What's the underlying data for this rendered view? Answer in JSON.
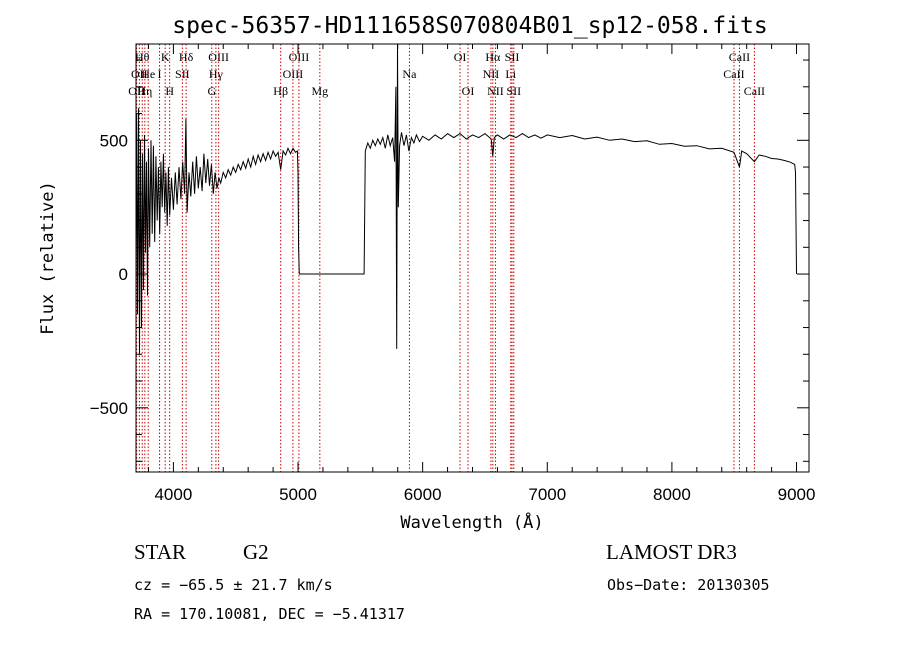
{
  "chart_data": {
    "type": "line",
    "title": "spec-56357-HD111658S070804B01_sp12-058.fits",
    "xlabel": "Wavelength (Å)",
    "ylabel": "Flux (relative)",
    "xlim": [
      3700,
      9100
    ],
    "ylim": [
      -740,
      860
    ],
    "x_ticks": [
      4000,
      5000,
      6000,
      7000,
      8000,
      9000
    ],
    "y_ticks": [
      -500,
      0,
      500
    ],
    "x_tick_labels": [
      "4000",
      "5000",
      "6000",
      "7000",
      "8000",
      "9000"
    ],
    "y_tick_labels": [
      "−500",
      "0",
      "500"
    ],
    "series": [
      {
        "name": "spectrum",
        "points": [
          [
            3700,
            100
          ],
          [
            3705,
            600
          ],
          [
            3712,
            -150
          ],
          [
            3720,
            620
          ],
          [
            3728,
            -300
          ],
          [
            3736,
            500
          ],
          [
            3744,
            -200
          ],
          [
            3752,
            450
          ],
          [
            3760,
            -60
          ],
          [
            3768,
            520
          ],
          [
            3776,
            80
          ],
          [
            3784,
            420
          ],
          [
            3792,
            -80
          ],
          [
            3800,
            470
          ],
          [
            3810,
            100
          ],
          [
            3820,
            500
          ],
          [
            3830,
            150
          ],
          [
            3840,
            480
          ],
          [
            3850,
            120
          ],
          [
            3860,
            440
          ],
          [
            3870,
            200
          ],
          [
            3880,
            400
          ],
          [
            3890,
            150
          ],
          [
            3900,
            420
          ],
          [
            3910,
            250
          ],
          [
            3920,
            450
          ],
          [
            3930,
            230
          ],
          [
            3940,
            380
          ],
          [
            3950,
            180
          ],
          [
            3960,
            400
          ],
          [
            3970,
            220
          ],
          [
            3985,
            360
          ],
          [
            4000,
            240
          ],
          [
            4015,
            380
          ],
          [
            4030,
            260
          ],
          [
            4045,
            400
          ],
          [
            4060,
            280
          ],
          [
            4075,
            420
          ],
          [
            4090,
            300
          ],
          [
            4100,
            580
          ],
          [
            4110,
            230
          ],
          [
            4125,
            380
          ],
          [
            4140,
            290
          ],
          [
            4155,
            420
          ],
          [
            4170,
            300
          ],
          [
            4185,
            440
          ],
          [
            4200,
            320
          ],
          [
            4215,
            400
          ],
          [
            4230,
            310
          ],
          [
            4245,
            450
          ],
          [
            4260,
            340
          ],
          [
            4275,
            430
          ],
          [
            4290,
            330
          ],
          [
            4305,
            410
          ],
          [
            4320,
            300
          ],
          [
            4335,
            380
          ],
          [
            4350,
            320
          ],
          [
            4365,
            360
          ],
          [
            4380,
            340
          ],
          [
            4400,
            380
          ],
          [
            4420,
            360
          ],
          [
            4440,
            390
          ],
          [
            4460,
            370
          ],
          [
            4480,
            400
          ],
          [
            4500,
            380
          ],
          [
            4520,
            410
          ],
          [
            4540,
            390
          ],
          [
            4560,
            420
          ],
          [
            4580,
            395
          ],
          [
            4600,
            430
          ],
          [
            4620,
            400
          ],
          [
            4640,
            440
          ],
          [
            4660,
            410
          ],
          [
            4680,
            445
          ],
          [
            4700,
            420
          ],
          [
            4720,
            450
          ],
          [
            4740,
            425
          ],
          [
            4760,
            455
          ],
          [
            4780,
            430
          ],
          [
            4800,
            460
          ],
          [
            4820,
            440
          ],
          [
            4840,
            455
          ],
          [
            4861,
            390
          ],
          [
            4880,
            460
          ],
          [
            4900,
            445
          ],
          [
            4920,
            470
          ],
          [
            4940,
            450
          ],
          [
            4960,
            470
          ],
          [
            4980,
            455
          ],
          [
            4995,
            460
          ],
          [
            5000,
            380
          ],
          [
            5005,
            100
          ],
          [
            5010,
            0
          ],
          [
            5200,
            0
          ],
          [
            5400,
            0
          ],
          [
            5530,
            0
          ],
          [
            5540,
            460
          ],
          [
            5560,
            490
          ],
          [
            5580,
            470
          ],
          [
            5600,
            500
          ],
          [
            5620,
            480
          ],
          [
            5640,
            505
          ],
          [
            5660,
            485
          ],
          [
            5680,
            510
          ],
          [
            5700,
            470
          ],
          [
            5720,
            520
          ],
          [
            5740,
            480
          ],
          [
            5760,
            510
          ],
          [
            5775,
            420
          ],
          [
            5785,
            700
          ],
          [
            5792,
            -280
          ],
          [
            5798,
            860
          ],
          [
            5805,
            250
          ],
          [
            5815,
            480
          ],
          [
            5830,
            530
          ],
          [
            5850,
            480
          ],
          [
            5870,
            520
          ],
          [
            5890,
            460
          ],
          [
            5910,
            510
          ],
          [
            5930,
            490
          ],
          [
            5950,
            520
          ],
          [
            5975,
            495
          ],
          [
            6000,
            515
          ],
          [
            6050,
            500
          ],
          [
            6100,
            520
          ],
          [
            6150,
            505
          ],
          [
            6200,
            525
          ],
          [
            6250,
            510
          ],
          [
            6300,
            525
          ],
          [
            6350,
            505
          ],
          [
            6400,
            520
          ],
          [
            6450,
            510
          ],
          [
            6500,
            525
          ],
          [
            6550,
            505
          ],
          [
            6563,
            440
          ],
          [
            6575,
            510
          ],
          [
            6600,
            520
          ],
          [
            6650,
            505
          ],
          [
            6700,
            520
          ],
          [
            6750,
            510
          ],
          [
            6800,
            525
          ],
          [
            6850,
            510
          ],
          [
            6900,
            520
          ],
          [
            6950,
            508
          ],
          [
            7000,
            520
          ],
          [
            7100,
            510
          ],
          [
            7200,
            518
          ],
          [
            7300,
            505
          ],
          [
            7400,
            512
          ],
          [
            7500,
            500
          ],
          [
            7600,
            505
          ],
          [
            7700,
            495
          ],
          [
            7800,
            498
          ],
          [
            7900,
            485
          ],
          [
            8000,
            488
          ],
          [
            8100,
            478
          ],
          [
            8200,
            480
          ],
          [
            8300,
            468
          ],
          [
            8400,
            470
          ],
          [
            8498,
            455
          ],
          [
            8542,
            400
          ],
          [
            8560,
            460
          ],
          [
            8600,
            450
          ],
          [
            8662,
            420
          ],
          [
            8700,
            445
          ],
          [
            8750,
            440
          ],
          [
            8800,
            432
          ],
          [
            8850,
            430
          ],
          [
            8900,
            425
          ],
          [
            8950,
            418
          ],
          [
            8985,
            410
          ],
          [
            8992,
            380
          ],
          [
            9000,
            0
          ]
        ]
      }
    ],
    "lines": [
      {
        "w": 3705,
        "label": "OII",
        "row": 2
      },
      {
        "w": 3727,
        "label": "OII",
        "row": 1
      },
      {
        "w": 3750,
        "label": "Hθ",
        "row": 0
      },
      {
        "w": 3771,
        "label": "Hη",
        "row": 2
      },
      {
        "w": 3798,
        "label": "He",
        "row": 1
      },
      {
        "w": 3889,
        "label": "I",
        "row": 1
      },
      {
        "w": 3934,
        "label": "K",
        "row": 0
      },
      {
        "w": 3970,
        "label": "H",
        "row": 2
      },
      {
        "w": 4072,
        "label": "SII",
        "row": 1
      },
      {
        "w": 4102,
        "label": "Hδ",
        "row": 0
      },
      {
        "w": 4308,
        "label": "G",
        "row": 2
      },
      {
        "w": 4341,
        "label": "Hγ",
        "row": 1
      },
      {
        "w": 4363,
        "label": "OIII",
        "row": 0
      },
      {
        "w": 4861,
        "label": "Hβ",
        "row": 2
      },
      {
        "w": 4959,
        "label": "OIII",
        "row": 1
      },
      {
        "w": 5007,
        "label": "OIII",
        "row": 0
      },
      {
        "w": 5175,
        "label": "Mg",
        "row": 2
      },
      {
        "w": 5894,
        "label": "Na",
        "row": 1
      },
      {
        "w": 6300,
        "label": "OI",
        "row": 0
      },
      {
        "w": 6364,
        "label": "OI",
        "row": 2
      },
      {
        "w": 6548,
        "label": "NII",
        "row": 1
      },
      {
        "w": 6563,
        "label": "Hα",
        "row": 0
      },
      {
        "w": 6584,
        "label": "NII",
        "row": 2
      },
      {
        "w": 6707,
        "label": "Li",
        "row": 1
      },
      {
        "w": 6717,
        "label": "SII",
        "row": 0
      },
      {
        "w": 6731,
        "label": "SII",
        "row": 2
      },
      {
        "w": 8498,
        "label": "CaII",
        "row": 1
      },
      {
        "w": 8542,
        "label": "CaII",
        "row": 0
      },
      {
        "w": 8662,
        "label": "CaII",
        "row": 2
      }
    ]
  },
  "info": {
    "object_class": "STAR",
    "subclass": "G2",
    "survey": "LAMOST DR3",
    "redshift": "cz = −65.5 ± 21.7 km/s",
    "obs_date": "Obs−Date: 20130305",
    "coords": "RA = 170.10081, DEC =  −5.41317"
  }
}
